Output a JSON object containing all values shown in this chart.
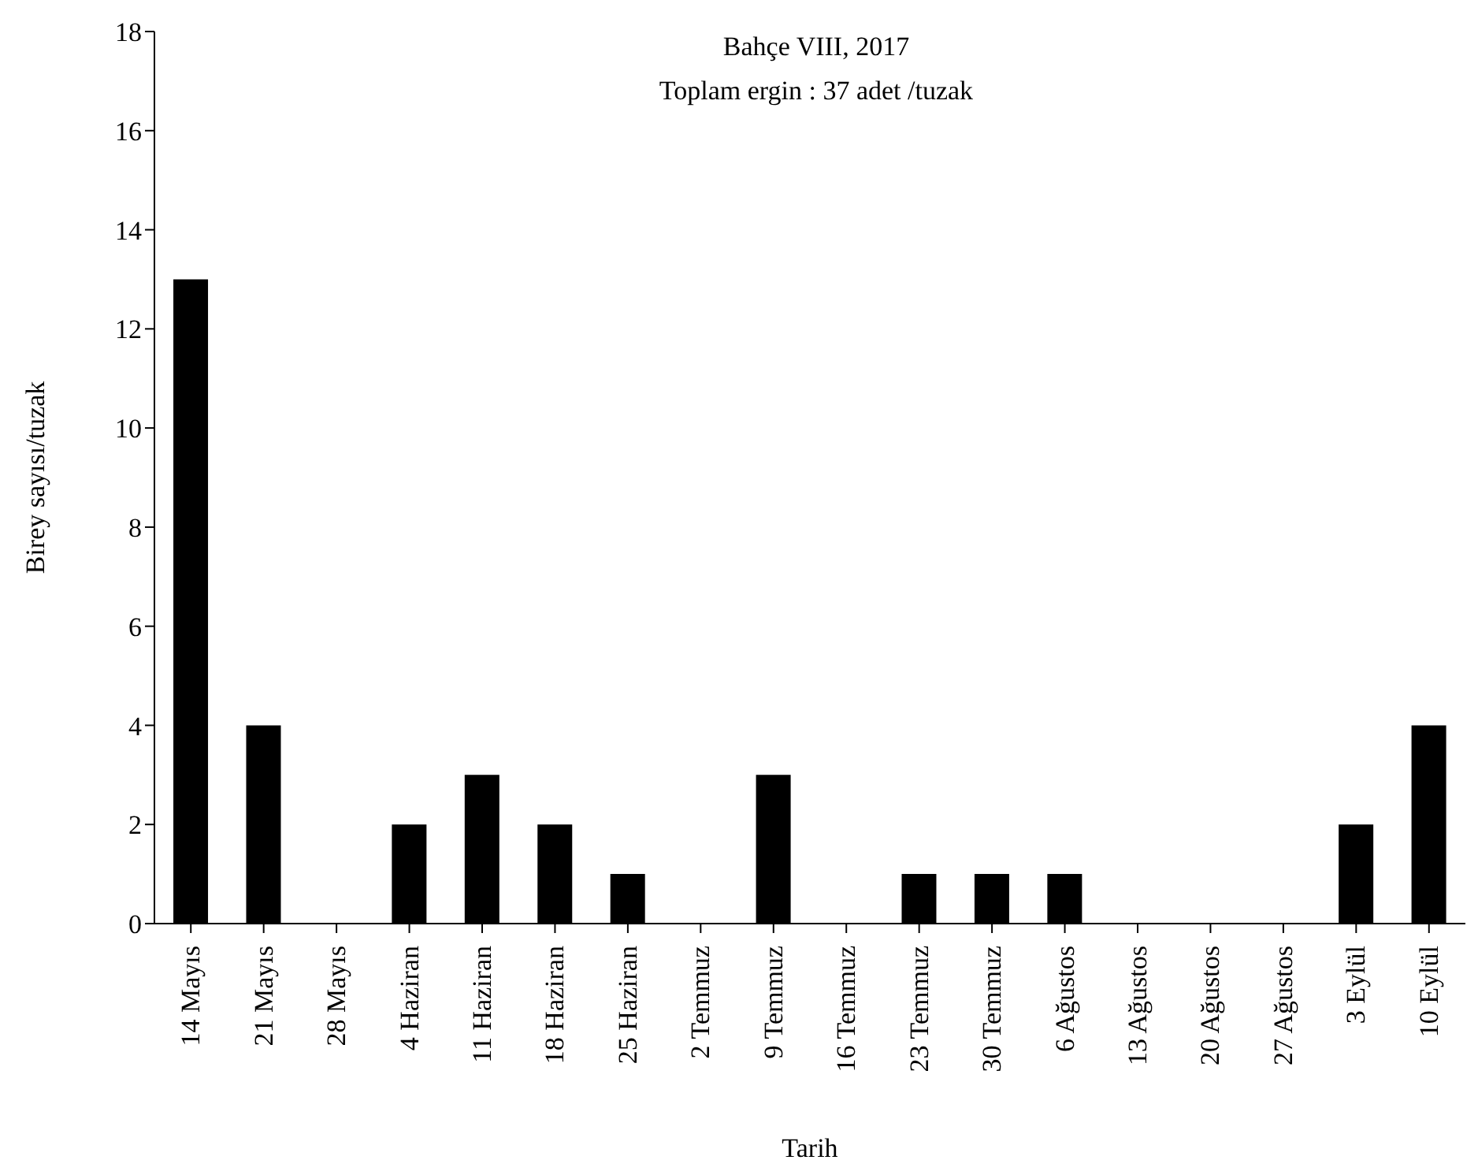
{
  "chart_data": {
    "type": "bar",
    "title": "Bahçe VIII, 2017",
    "subtitle": "Toplam ergin : 37 adet /tuzak",
    "xlabel": "Tarih",
    "ylabel": "Birey sayısı/tuzak",
    "categories": [
      "14 Mayıs",
      "21 Mayıs",
      "28 Mayıs",
      "4 Haziran",
      "11 Haziran",
      "18 Haziran",
      "25 Haziran",
      "2 Temmuz",
      "9 Temmuz",
      "16 Temmuz",
      "23 Temmuz",
      "30 Temmuz",
      "6 Ağustos",
      "13 Ağustos",
      "20 Ağustos",
      "27 Ağustos",
      "3 Eylül",
      "10 Eylül"
    ],
    "values": [
      13,
      4,
      0,
      2,
      3,
      2,
      1,
      0,
      3,
      0,
      1,
      1,
      1,
      0,
      0,
      0,
      2,
      4
    ],
    "color": "#000000",
    "ylim": [
      0,
      18
    ],
    "yticks": [
      0,
      2,
      4,
      6,
      8,
      10,
      12,
      14,
      16,
      18
    ],
    "grid": false,
    "legend": false
  }
}
